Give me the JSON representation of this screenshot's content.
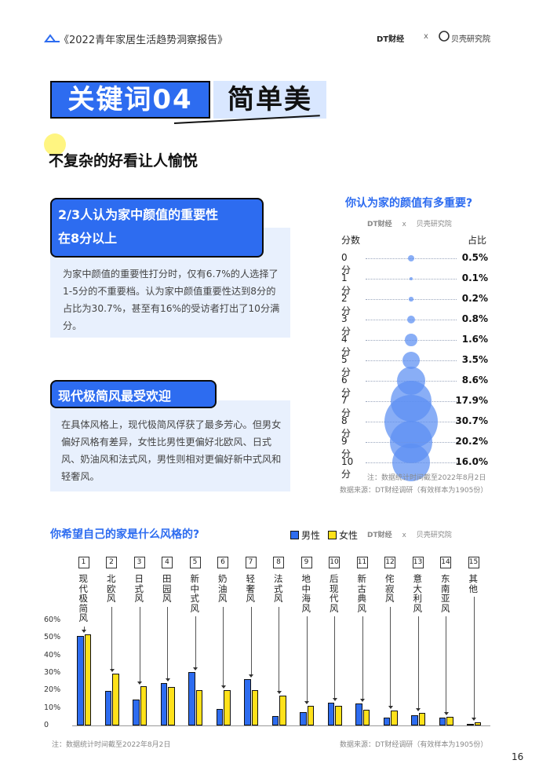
{
  "header": {
    "title": "《2022青年家居生活趋势洞察报告》",
    "logo_dt": "DT财经",
    "separator": "x",
    "logo_bk": "贝壳研究院"
  },
  "keyword": {
    "label": "关键词04",
    "word": "简单美"
  },
  "subtitle": "不复杂的好看让人愉悦",
  "cards": [
    {
      "title_lines": [
        "2/3人认为家中颜值的重要性",
        "在8分以上"
      ],
      "text": "为家中颜值的重要性打分时，仅有6.7%的人选择了1-5分的不重要档。认为家中颜值重要性达到8分的占比为30.7%，甚至有16%的受访者打出了10分满分。"
    },
    {
      "title_lines": [
        "现代极简风最受欢迎"
      ],
      "text": "在具体风格上，现代极简风俘获了最多芳心。但男女偏好风格有差异，女性比男性更偏好北欧风、日式风、奶油风和法式风，男性则相对更偏好新中式风和轻奢风。"
    }
  ],
  "bubble_chart": {
    "title": "你认为家的颜值有多重要?",
    "col_score": "分数",
    "col_pct": "占比",
    "rows": [
      {
        "label": "0分",
        "value": 0.5,
        "text": "0.5%"
      },
      {
        "label": "1分",
        "value": 0.1,
        "text": "0.1%"
      },
      {
        "label": "2分",
        "value": 0.2,
        "text": "0.2%"
      },
      {
        "label": "3分",
        "value": 0.8,
        "text": "0.8%"
      },
      {
        "label": "4分",
        "value": 1.6,
        "text": "1.6%"
      },
      {
        "label": "5分",
        "value": 3.5,
        "text": "3.5%"
      },
      {
        "label": "6分",
        "value": 8.6,
        "text": "8.6%"
      },
      {
        "label": "7分",
        "value": 17.9,
        "text": "17.9%"
      },
      {
        "label": "8分",
        "value": 30.7,
        "text": "30.7%"
      },
      {
        "label": "9分",
        "value": 20.2,
        "text": "20.2%"
      },
      {
        "label": "10分",
        "value": 16.0,
        "text": "16.0%"
      }
    ],
    "note": "注：数据统计时间截至2022年8月2日",
    "source": "数据来源：DT财经调研（有效样本为1905份）",
    "bubble_color": "#5b8ff2"
  },
  "chart_data": {
    "type": "bar",
    "title": "你希望自己的家是什么风格的?",
    "categories": [
      "现代极简风",
      "北欧风",
      "日式风",
      "田园风",
      "新中式风",
      "奶油风",
      "轻奢风",
      "法式风",
      "地中海风",
      "后现代风",
      "新古典风",
      "侘寂风",
      "意大利风",
      "东南亚风",
      "其他"
    ],
    "category_numbers": [
      "1",
      "2",
      "3",
      "4",
      "5",
      "6",
      "7",
      "8",
      "9",
      "10",
      "11",
      "12",
      "13",
      "14",
      "15"
    ],
    "series": [
      {
        "name": "男性",
        "color": "#2d6cf0",
        "values": [
          51,
          19.5,
          15,
          24,
          30.5,
          9.5,
          26.5,
          5.5,
          7.5,
          13,
          12.5,
          4.5,
          6,
          4.5,
          1
        ]
      },
      {
        "name": "女性",
        "color": "#ffe11a",
        "values": [
          52,
          29.5,
          22.5,
          22,
          20,
          20,
          20,
          17,
          11,
          11,
          9,
          8.5,
          7,
          5,
          2
        ]
      }
    ],
    "yticks": [
      "0",
      "10%",
      "20%",
      "30%",
      "40%",
      "50%",
      "60%"
    ],
    "ylim": [
      0,
      60
    ],
    "note": "注：数据统计时间截至2022年8月2日",
    "source": "数据来源：DT财经调研（有效样本为1905份）"
  },
  "page_number": "16"
}
